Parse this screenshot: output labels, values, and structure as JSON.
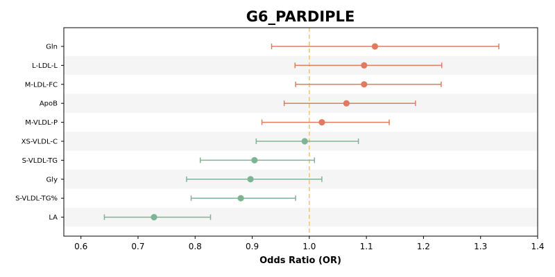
{
  "chart_data": {
    "type": "forest",
    "title": "G6_PARDIPLE",
    "xlabel": "Odds Ratio (OR)",
    "xlim": [
      0.57,
      1.4
    ],
    "xticks": [
      0.6,
      0.7,
      0.8,
      0.9,
      1.0,
      1.1,
      1.2,
      1.3,
      1.4
    ],
    "xtick_labels": [
      "0.6",
      "0.7",
      "0.8",
      "0.9",
      "1.0",
      "1.1",
      "1.2",
      "1.3",
      "1.4"
    ],
    "reference_line": 1.0,
    "grid": false,
    "alternating_row_shading": true,
    "colors": {
      "risk": "#e07b5f",
      "protective": "#7fb396",
      "reference": "#f2c878",
      "row_shade": "#f5f5f5"
    },
    "items": [
      {
        "label": "Gln",
        "or": 1.115,
        "lower": 0.934,
        "upper": 1.332,
        "direction": "risk"
      },
      {
        "label": "L-LDL-L",
        "or": 1.096,
        "lower": 0.975,
        "upper": 1.232,
        "direction": "risk"
      },
      {
        "label": "M-LDL-FC",
        "or": 1.096,
        "lower": 0.976,
        "upper": 1.231,
        "direction": "risk"
      },
      {
        "label": "ApoB",
        "or": 1.065,
        "lower": 0.956,
        "upper": 1.186,
        "direction": "risk"
      },
      {
        "label": "M-VLDL-P",
        "or": 1.022,
        "lower": 0.917,
        "upper": 1.14,
        "direction": "risk"
      },
      {
        "label": "XS-VLDL-C",
        "or": 0.992,
        "lower": 0.907,
        "upper": 1.086,
        "direction": "protective"
      },
      {
        "label": "S-VLDL-TG",
        "or": 0.904,
        "lower": 0.809,
        "upper": 1.009,
        "direction": "protective"
      },
      {
        "label": "Gly",
        "or": 0.897,
        "lower": 0.785,
        "upper": 1.022,
        "direction": "protective"
      },
      {
        "label": "S-VLDL-TG%",
        "or": 0.88,
        "lower": 0.793,
        "upper": 0.976,
        "direction": "protective"
      },
      {
        "label": "LA",
        "or": 0.728,
        "lower": 0.641,
        "upper": 0.827,
        "direction": "protective"
      }
    ]
  }
}
